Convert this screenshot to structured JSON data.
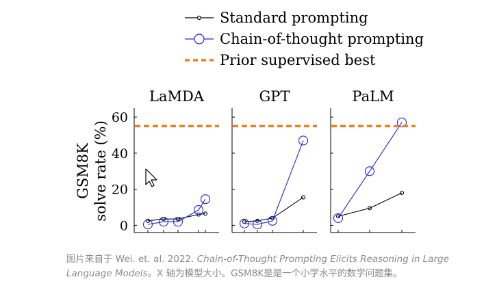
{
  "legend": [
    {
      "label": "Standard prompting",
      "color": "#000000",
      "marker": "small-circle"
    },
    {
      "label": "Chain-of-thought prompting",
      "color": "#2222ee",
      "marker": "large-circle"
    },
    {
      "label": "Prior supervised best",
      "color": "#f47f16",
      "marker": "dashed-line"
    }
  ],
  "y_axis": {
    "label_line1": "GSM8K",
    "label_line2": "solve rate (%)",
    "ticks": [
      "0",
      "20",
      "40",
      "60"
    ]
  },
  "chart_data": [
    {
      "type": "line",
      "title": "LaMDA",
      "ylabel": "GSM8K solve rate (%)",
      "ylim": [
        -4,
        65
      ],
      "x": [
        1,
        2,
        3,
        4,
        5
      ],
      "series": [
        {
          "name": "Standard prompting",
          "values": [
            2.5,
            3.5,
            3.5,
            6,
            6.5
          ]
        },
        {
          "name": "Chain-of-thought prompting",
          "values": [
            0.5,
            2,
            2,
            8.5,
            14.5
          ]
        },
        {
          "name": "Prior supervised best",
          "values": [
            55,
            55,
            55,
            55,
            55
          ]
        }
      ],
      "grid": false
    },
    {
      "type": "line",
      "title": "GPT",
      "ylim": [
        -4,
        65
      ],
      "x": [
        1,
        2,
        3,
        4
      ],
      "series": [
        {
          "name": "Standard prompting",
          "values": [
            2,
            2.5,
            4,
            15.5
          ]
        },
        {
          "name": "Chain-of-thought prompting",
          "values": [
            1,
            0.5,
            2.5,
            47
          ]
        },
        {
          "name": "Prior supervised best",
          "values": [
            55,
            55,
            55,
            55
          ]
        }
      ],
      "grid": false
    },
    {
      "type": "line",
      "title": "PaLM",
      "ylim": [
        -4,
        65
      ],
      "x": [
        1,
        2,
        3
      ],
      "series": [
        {
          "name": "Standard prompting",
          "values": [
            5,
            9.5,
            18
          ]
        },
        {
          "name": "Chain-of-thought prompting",
          "values": [
            4,
            30,
            57
          ]
        },
        {
          "name": "Prior supervised best",
          "values": [
            55,
            55,
            55
          ]
        }
      ],
      "grid": false
    }
  ],
  "caption": {
    "prefix": "图片来自于 Wei. et. al. 2022. ",
    "title": "Chain-of-Thought Prompting Elicits Reasoning in Large Language Models",
    "suffix": "。X 轴为模型大小。GSM8K是是一个小学水平的数学问题集。"
  }
}
